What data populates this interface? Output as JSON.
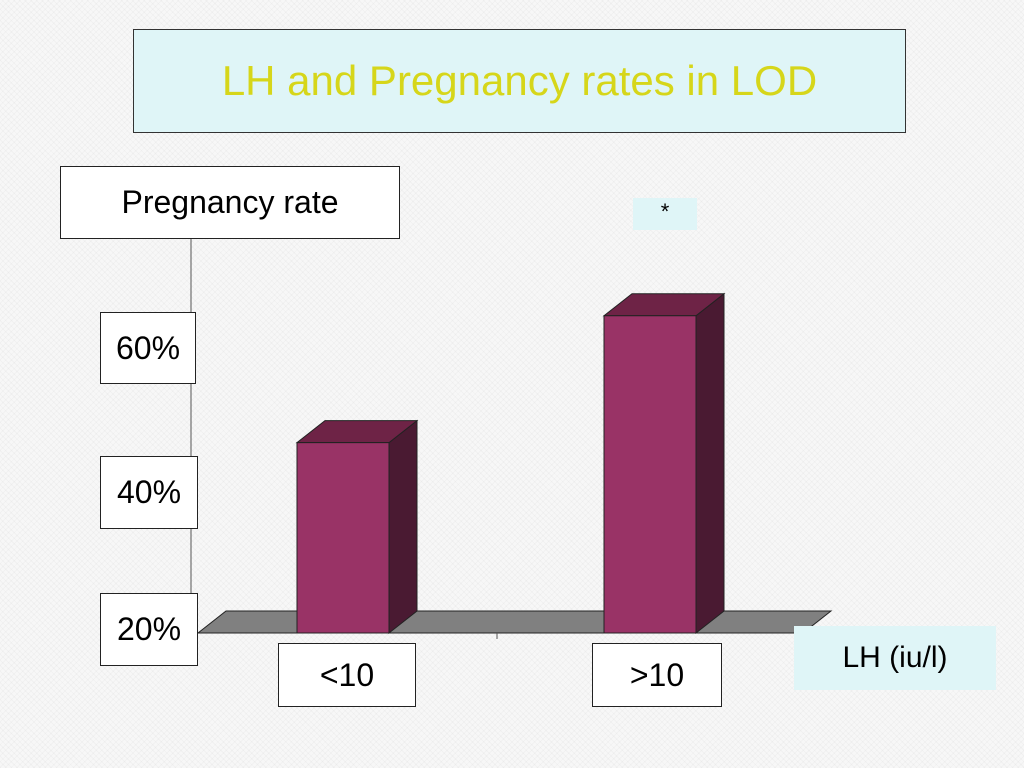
{
  "chart_data": {
    "type": "bar",
    "title": "LH and Pregnancy rates in LOD",
    "ylabel": "Pregnancy rate",
    "xlabel": "LH (iu/l)",
    "categories": [
      "<10",
      ">10"
    ],
    "values": [
      0.48,
      0.68
    ],
    "yticks": [
      "20%",
      "40%",
      "60%"
    ],
    "ylim": [
      0.18,
      0.76
    ],
    "annotation": "*",
    "three_d": true,
    "colors": {
      "bar_front": "#993366",
      "bar_top": "#6e2346",
      "bar_side": "#4a1a32",
      "floor": "#808080",
      "title_text": "#d6d61a",
      "label_bg": "#dff5f7"
    }
  }
}
